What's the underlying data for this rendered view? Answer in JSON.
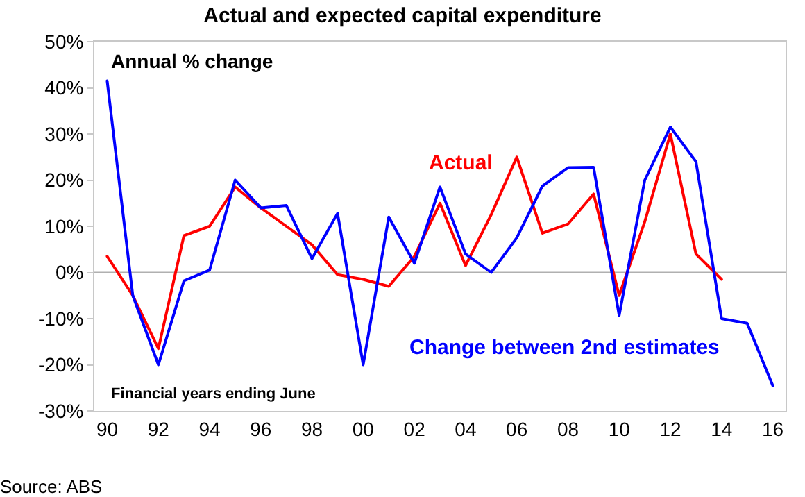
{
  "chart_data": {
    "type": "line",
    "title": "Actual and expected capital expenditure",
    "x": [
      1990,
      1991,
      1992,
      1993,
      1994,
      1995,
      1996,
      1997,
      1998,
      1999,
      2000,
      2001,
      2002,
      2003,
      2004,
      2005,
      2006,
      2007,
      2008,
      2009,
      2010,
      2011,
      2012,
      2013,
      2014,
      2015,
      2016
    ],
    "series": [
      {
        "name": "Actual",
        "color": "#ff0000",
        "values": [
          3.5,
          -5,
          -16.5,
          8,
          10,
          18.5,
          14,
          10,
          6,
          -0.5,
          -1.5,
          -3,
          3.5,
          15,
          1.5,
          12.5,
          25,
          8.5,
          10.5,
          17,
          -5,
          11,
          30,
          4,
          -1.5,
          null,
          null
        ]
      },
      {
        "name": "Change between 2nd estimates",
        "color": "#0000ff",
        "values": [
          41.5,
          -5,
          -20,
          -1.8,
          0.5,
          20,
          14,
          14.5,
          3,
          12.8,
          -20,
          12,
          2,
          18.5,
          4,
          0,
          7.5,
          18.7,
          22.7,
          22.8,
          -9.3,
          20,
          31.5,
          24,
          -10,
          -11,
          -24.5
        ]
      }
    ],
    "xlim": [
      1989.5,
      2016.5
    ],
    "xticks": [
      {
        "value": 1990,
        "label": "90"
      },
      {
        "value": 1992,
        "label": "92"
      },
      {
        "value": 1994,
        "label": "94"
      },
      {
        "value": 1996,
        "label": "96"
      },
      {
        "value": 1998,
        "label": "98"
      },
      {
        "value": 2000,
        "label": "00"
      },
      {
        "value": 2002,
        "label": "02"
      },
      {
        "value": 2004,
        "label": "04"
      },
      {
        "value": 2006,
        "label": "06"
      },
      {
        "value": 2008,
        "label": "08"
      },
      {
        "value": 2010,
        "label": "10"
      },
      {
        "value": 2012,
        "label": "12"
      },
      {
        "value": 2014,
        "label": "14"
      },
      {
        "value": 2016,
        "label": "16"
      }
    ],
    "ylim": [
      -30,
      50
    ],
    "yticks": [
      {
        "value": -30,
        "label": "-30%"
      },
      {
        "value": -20,
        "label": "-20%"
      },
      {
        "value": -10,
        "label": "-10%"
      },
      {
        "value": 0,
        "label": "0%"
      },
      {
        "value": 10,
        "label": "10%"
      },
      {
        "value": 20,
        "label": "20%"
      },
      {
        "value": 30,
        "label": "30%"
      },
      {
        "value": 40,
        "label": "40%"
      },
      {
        "value": 50,
        "label": "50%"
      }
    ],
    "ref_lines": [
      {
        "axis": "y",
        "value": 0,
        "color": "#b0b0b0"
      }
    ],
    "annotations": [
      "Annual % change",
      "Financial years ending June",
      "Source: ABS"
    ],
    "grid": false,
    "legend": false,
    "marker": "none",
    "line_style": "solid"
  }
}
